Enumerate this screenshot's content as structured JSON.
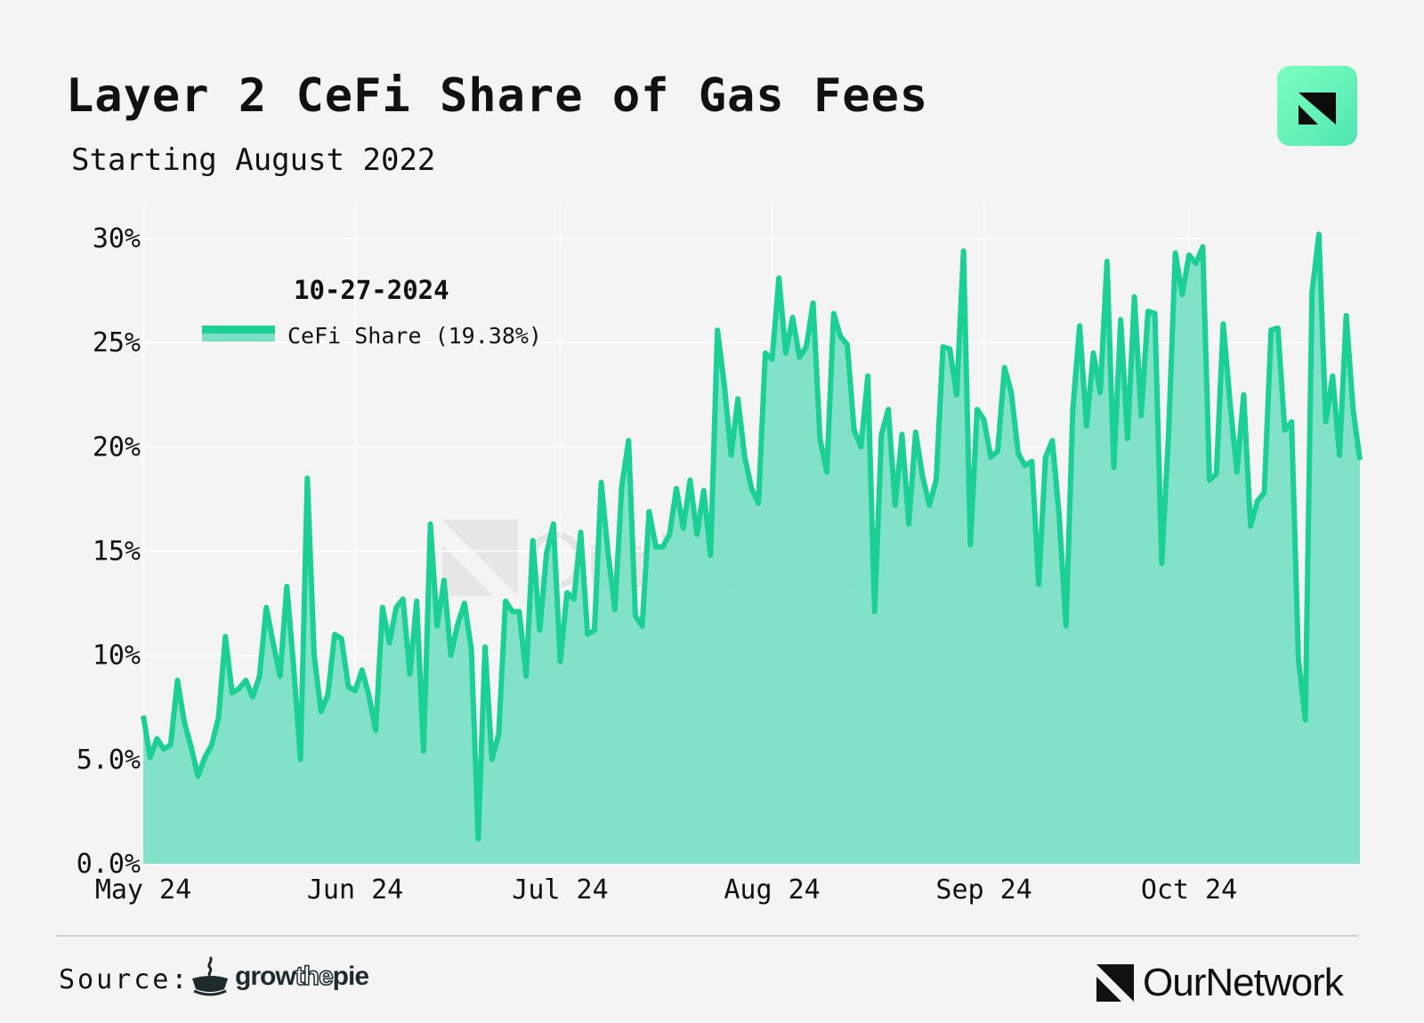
{
  "header": {
    "title": "Layer 2 CeFi Share of Gas Fees",
    "subtitle": "Starting August 2022"
  },
  "footer": {
    "source_label": "Source:",
    "source_brand_parts": [
      "grow",
      "the",
      "pie"
    ],
    "brand": "OurNetwork"
  },
  "watermark": {
    "text": "OurNetwork"
  },
  "colors": {
    "line": "#1ccf94",
    "area": "#7be0c6",
    "grid": "#ffffff",
    "background": "#f4f4f4"
  },
  "chart_data": {
    "type": "area",
    "title": "Layer 2 CeFi Share of Gas Fees",
    "subtitle": "Starting August 2022",
    "xlabel": "",
    "ylabel": "",
    "grid": true,
    "legend_position": "top-left",
    "legend": {
      "date": "10-27-2024",
      "label": "CeFi Share (19.38%)"
    },
    "x_range_days": [
      0,
      178
    ],
    "x_ticks": [
      {
        "label": "May 24",
        "day": 0
      },
      {
        "label": "Jun 24",
        "day": 31
      },
      {
        "label": "Jul 24",
        "day": 61
      },
      {
        "label": "Aug 24",
        "day": 92
      },
      {
        "label": "Sep 24",
        "day": 123
      },
      {
        "label": "Oct 24",
        "day": 153
      }
    ],
    "ylim": [
      0,
      30
    ],
    "y_ticks": [
      {
        "label": "0.0%",
        "value": 0
      },
      {
        "label": "5.0%",
        "value": 5
      },
      {
        "label": "10%",
        "value": 10
      },
      {
        "label": "15%",
        "value": 15
      },
      {
        "label": "20%",
        "value": 20
      },
      {
        "label": "25%",
        "value": 25
      },
      {
        "label": "30%",
        "value": 30
      }
    ],
    "series": [
      {
        "name": "CeFi Share",
        "start_date": "2024-05-01",
        "end_date": "2024-10-27",
        "values": [
          7.1,
          5.1,
          6.0,
          5.5,
          5.7,
          8.8,
          6.8,
          5.6,
          4.2,
          5.1,
          5.7,
          7.0,
          10.9,
          8.2,
          8.4,
          8.8,
          8.0,
          9.0,
          12.3,
          10.6,
          9.0,
          13.3,
          9.4,
          5.0,
          18.5,
          10.0,
          7.3,
          8.1,
          11.0,
          10.8,
          8.5,
          8.3,
          9.3,
          8.1,
          6.4,
          12.3,
          10.6,
          12.3,
          12.7,
          9.1,
          12.6,
          5.4,
          16.3,
          11.4,
          13.6,
          10.0,
          11.5,
          12.5,
          10.3,
          1.2,
          10.4,
          5.0,
          6.2,
          12.6,
          12.1,
          12.1,
          9.0,
          15.5,
          11.2,
          14.9,
          16.3,
          9.7,
          13.0,
          12.7,
          15.9,
          11.0,
          11.2,
          18.3,
          14.9,
          12.2,
          18.1,
          20.3,
          11.9,
          11.4,
          16.9,
          15.2,
          15.2,
          15.8,
          18.0,
          16.1,
          18.4,
          15.8,
          17.9,
          14.8,
          25.6,
          23.0,
          19.6,
          22.3,
          19.5,
          18.0,
          17.3,
          24.5,
          24.2,
          28.1,
          24.5,
          26.2,
          24.3,
          24.8,
          26.9,
          20.4,
          18.8,
          26.4,
          25.3,
          24.9,
          20.8,
          20.0,
          23.4,
          12.1,
          20.6,
          21.8,
          17.2,
          20.6,
          16.3,
          20.7,
          18.6,
          17.2,
          18.4,
          24.8,
          24.7,
          22.5,
          29.4,
          15.3,
          21.8,
          21.3,
          19.5,
          19.8,
          23.8,
          22.6,
          19.7,
          19.1,
          19.3,
          13.4,
          19.5,
          20.3,
          16.7,
          11.4,
          21.8,
          25.8,
          21.0,
          24.5,
          22.6,
          28.9,
          19.0,
          26.1,
          20.4,
          27.2,
          21.5,
          26.5,
          26.4,
          14.4,
          20.6,
          29.3,
          27.3,
          29.2,
          28.8,
          29.6,
          18.4,
          18.7,
          25.9,
          22.1,
          18.8,
          22.5,
          16.2,
          17.4,
          17.8,
          25.6,
          25.7,
          20.8,
          21.2,
          9.8,
          6.9,
          27.4,
          30.2,
          21.2,
          23.4,
          19.6,
          26.3,
          21.8,
          19.38
        ]
      }
    ]
  }
}
